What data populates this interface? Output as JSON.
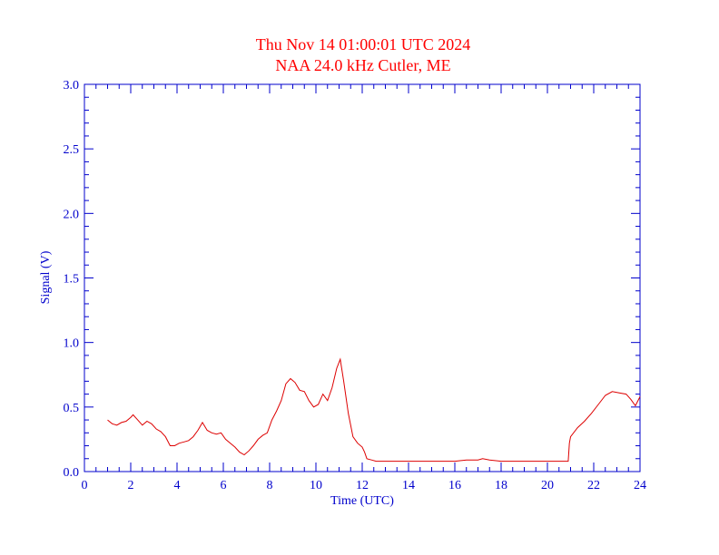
{
  "colors": {
    "title": "#ff0000",
    "axis": "#0000cc",
    "series": "#dd0000",
    "background": "#ffffff"
  },
  "chart_data": {
    "type": "line",
    "title": "Thu Nov 14 01:00:01 UTC 2024",
    "subtitle": "NAA 24.0 kHz Cutler, ME",
    "xlabel": "Time (UTC)",
    "ylabel": "Signal (V)",
    "xlim": [
      0,
      24
    ],
    "ylim": [
      0,
      3.0
    ],
    "x_ticks": [
      0,
      2,
      4,
      6,
      8,
      10,
      12,
      14,
      16,
      18,
      20,
      22,
      24
    ],
    "x_tick_labels": [
      "0",
      "2",
      "4",
      "6",
      "8",
      "10",
      "12",
      "14",
      "16",
      "18",
      "20",
      "22",
      "24"
    ],
    "y_ticks": [
      0,
      0.5,
      1.0,
      1.5,
      2.0,
      2.5,
      3.0
    ],
    "y_tick_labels": [
      "0.0",
      "0.5",
      "1.0",
      "1.5",
      "2.0",
      "2.5",
      "3.0"
    ],
    "grid": false,
    "series": [
      {
        "x": [
          1.0,
          1.2,
          1.4,
          1.6,
          1.8,
          2.0,
          2.1,
          2.3,
          2.5,
          2.7,
          2.9,
          3.1,
          3.3,
          3.5,
          3.7,
          3.9,
          4.1,
          4.3,
          4.5,
          4.7,
          4.9,
          5.1,
          5.3,
          5.5,
          5.7,
          5.9,
          6.1,
          6.3,
          6.5,
          6.7,
          6.9,
          7.1,
          7.3,
          7.5,
          7.7,
          7.9,
          8.1,
          8.3,
          8.5,
          8.7,
          8.9,
          9.1,
          9.3,
          9.5,
          9.7,
          9.9,
          10.1,
          10.3,
          10.5,
          10.7,
          10.9,
          11.05,
          11.2,
          11.4,
          11.6,
          11.8,
          12.0,
          12.1,
          12.2,
          12.4,
          12.6,
          13.0,
          14.0,
          15.0,
          16.0,
          16.5,
          17.0,
          17.2,
          17.5,
          18.0,
          19.0,
          20.0,
          20.5,
          20.9,
          20.95,
          21.0,
          21.3,
          21.6,
          21.9,
          22.2,
          22.5,
          22.8,
          23.1,
          23.4,
          23.6,
          23.8,
          24.0
        ],
        "y": [
          0.4,
          0.37,
          0.36,
          0.38,
          0.39,
          0.42,
          0.44,
          0.4,
          0.36,
          0.39,
          0.37,
          0.33,
          0.31,
          0.27,
          0.2,
          0.2,
          0.22,
          0.23,
          0.24,
          0.27,
          0.32,
          0.38,
          0.32,
          0.3,
          0.29,
          0.3,
          0.25,
          0.22,
          0.19,
          0.15,
          0.13,
          0.16,
          0.2,
          0.25,
          0.28,
          0.3,
          0.4,
          0.47,
          0.55,
          0.68,
          0.72,
          0.69,
          0.63,
          0.62,
          0.55,
          0.5,
          0.52,
          0.6,
          0.55,
          0.65,
          0.8,
          0.87,
          0.7,
          0.45,
          0.27,
          0.22,
          0.19,
          0.15,
          0.1,
          0.09,
          0.08,
          0.08,
          0.08,
          0.08,
          0.08,
          0.09,
          0.09,
          0.1,
          0.09,
          0.08,
          0.08,
          0.08,
          0.08,
          0.08,
          0.22,
          0.27,
          0.34,
          0.39,
          0.45,
          0.52,
          0.59,
          0.62,
          0.61,
          0.6,
          0.56,
          0.51,
          0.58
        ]
      }
    ]
  }
}
